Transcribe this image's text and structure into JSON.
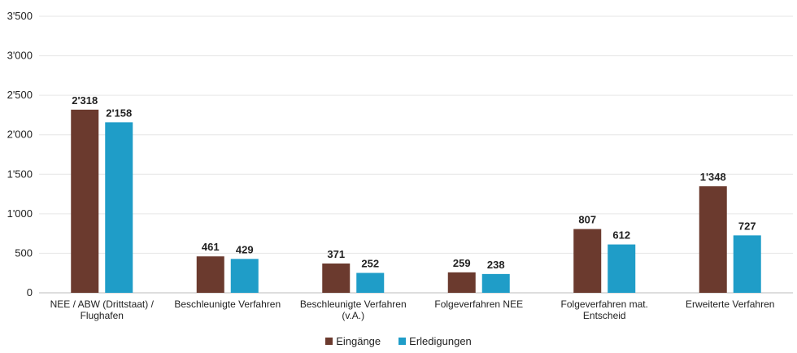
{
  "chart_data": {
    "type": "bar",
    "title": "",
    "xlabel": "",
    "ylabel": "",
    "ylim": [
      0,
      3500
    ],
    "y_ticks": [
      0,
      500,
      1000,
      1500,
      2000,
      2500,
      3000,
      3500
    ],
    "y_tick_labels": [
      "0",
      "500",
      "1'000",
      "1'500",
      "2'000",
      "2'500",
      "3'000",
      "3'500"
    ],
    "grid": true,
    "legend_position": "bottom",
    "categories": [
      [
        "NEE / ABW (Drittstaat) /",
        "Flughafen"
      ],
      [
        "Beschleunigte Verfahren"
      ],
      [
        "Beschleunigte Verfahren",
        "(v.A.)"
      ],
      [
        "Folgeverfahren NEE"
      ],
      [
        "Folgeverfahren mat.",
        "Entscheid"
      ],
      [
        "Erweiterte Verfahren"
      ]
    ],
    "series": [
      {
        "name": "Eingänge",
        "color": "#6b3a2e",
        "values": [
          2318,
          461,
          371,
          259,
          807,
          1348
        ],
        "labels": [
          "2'318",
          "461",
          "371",
          "259",
          "807",
          "1'348"
        ]
      },
      {
        "name": "Erledigungen",
        "color": "#1f9dc8",
        "values": [
          2158,
          429,
          252,
          238,
          612,
          727
        ],
        "labels": [
          "2'158",
          "429",
          "252",
          "238",
          "612",
          "727"
        ]
      }
    ]
  }
}
